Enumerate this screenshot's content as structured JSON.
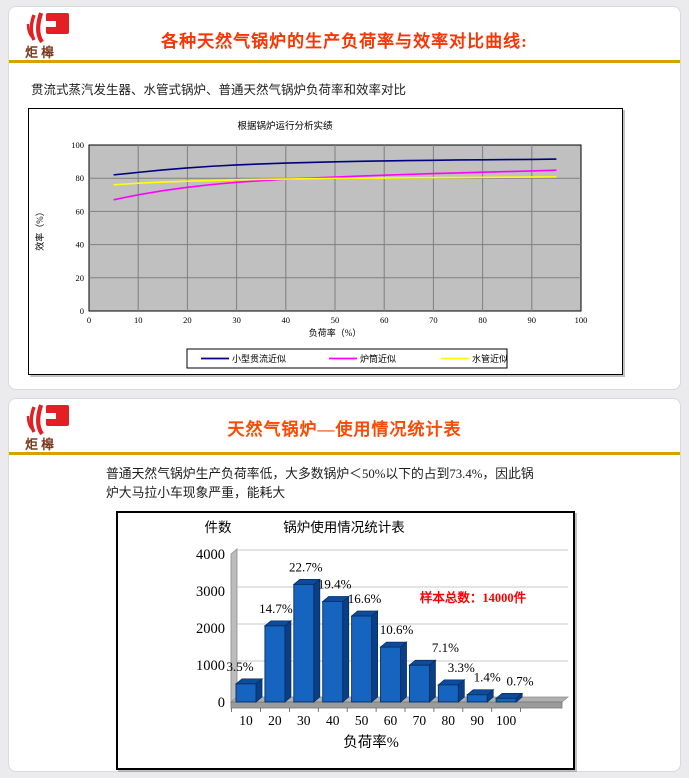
{
  "page": {
    "background": "#ebebed",
    "accent_rule_color": "#d7a101"
  },
  "slide1": {
    "logo_text": "炬槔",
    "title": "各种天然气锅炉的生产负荷率与效率对比曲线:",
    "title_color": "#f93603",
    "subtitle": "贯流式蒸汽发生器、水管式锅炉、普通天然气锅炉负荷率和效率对比"
  },
  "slide2": {
    "logo_text": "炬槔",
    "title": "天然气锅炉—使用情况统计表",
    "title_color": "#fb4a03",
    "paragraph": "普通天然气锅炉生产负荷率低，大多数锅炉＜50%以下的占到73.4%，因此锅炉大马拉小车现象严重，能耗大"
  },
  "chart_data": [
    {
      "type": "line",
      "title": "根据锅炉运行分析实绩",
      "xlabel": "负荷率（%）",
      "ylabel": "效率（%）",
      "xlim": [
        0,
        100
      ],
      "ylim": [
        0,
        100
      ],
      "x_ticks": [
        0,
        10,
        20,
        30,
        40,
        50,
        60,
        70,
        80,
        90,
        100
      ],
      "y_ticks": [
        0,
        20,
        40,
        60,
        80,
        100
      ],
      "grid": true,
      "plot_bg": "#c0c0c0",
      "grid_color": "#7f7f7f",
      "legend_position": "bottom",
      "x": [
        5,
        10,
        15,
        20,
        25,
        30,
        35,
        40,
        45,
        50,
        55,
        60,
        65,
        70,
        75,
        80,
        85,
        90,
        95
      ],
      "series": [
        {
          "name": "小型贯流近似",
          "color": "#000080",
          "values": [
            82,
            83.5,
            85,
            86.2,
            87.2,
            88,
            88.6,
            89.1,
            89.5,
            89.9,
            90.2,
            90.4,
            90.6,
            90.8,
            91,
            91.1,
            91.2,
            91.3,
            91.5
          ]
        },
        {
          "name": "炉筒近似",
          "color": "#ff00ff",
          "values": [
            67,
            70,
            72.5,
            74.5,
            76.2,
            77.5,
            78.5,
            79.4,
            80.1,
            80.7,
            81.3,
            81.8,
            82.3,
            82.8,
            83.2,
            83.6,
            84,
            84.4,
            84.8
          ]
        },
        {
          "name": "水管近似",
          "color": "#ffff00",
          "values": [
            76,
            77,
            77.7,
            78.2,
            78.6,
            79,
            79.3,
            79.5,
            79.7,
            79.9,
            80,
            80.1,
            80.2,
            80.3,
            80.4,
            80.5,
            80.6,
            80.7,
            80.8
          ]
        }
      ]
    },
    {
      "type": "bar",
      "title": "锅炉使用情况统计表",
      "ylabel": "件数",
      "xlabel": "负荷率%",
      "categories": [
        "10",
        "20",
        "30",
        "40",
        "50",
        "60",
        "70",
        "80",
        "90",
        "100"
      ],
      "values": [
        490,
        2058,
        3178,
        2716,
        2324,
        1484,
        994,
        462,
        196,
        98
      ],
      "bar_labels": [
        "3.5%",
        "14.7%",
        "22.7%",
        "19.4%",
        "16.6%",
        "10.6%",
        "7.1%",
        "3.3%",
        "1.4%",
        "0.7%"
      ],
      "annotation": "样本总数：14000件",
      "annotation_color": "#ff0000",
      "ylim": [
        0,
        4000
      ],
      "y_ticks": [
        0,
        1000,
        2000,
        3000,
        4000
      ],
      "bar_color": "#1565c0",
      "bar_side_color": "#0a3f88",
      "bar_top_color": "#0d4ba0",
      "style": "3d"
    }
  ]
}
